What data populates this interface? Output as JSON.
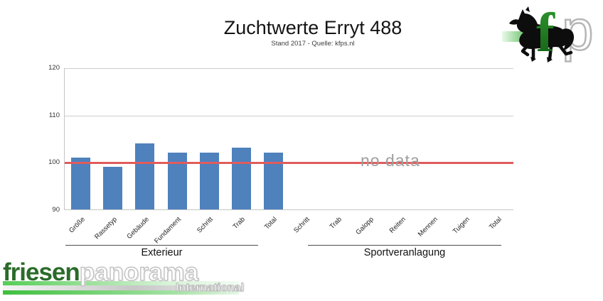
{
  "header": {
    "title": "Zuchtwerte Erryt 488",
    "subtitle": "Stand 2017 - Quelle: kfps.nl"
  },
  "chart_data": {
    "type": "bar",
    "title": "Zuchtwerte Erryt 488",
    "subtitle": "Stand 2017 - Quelle: kfps.nl",
    "ylim": [
      90,
      120
    ],
    "yticks": [
      90,
      100,
      110,
      120
    ],
    "grid": true,
    "legend": false,
    "bar_color": "#4f81bd",
    "reference_line": {
      "value": 100,
      "color": "#e05c5c"
    },
    "no_data_text": "no data",
    "groups": [
      {
        "label": "Exterieur",
        "categories": [
          "Größe",
          "Rassetyp",
          "Gebäude",
          "Fundament",
          "Schritt",
          "Trab",
          "Total"
        ],
        "values": [
          101,
          99,
          104,
          102,
          102,
          103,
          102
        ]
      },
      {
        "label": "Sportveranlagung",
        "categories": [
          "Schritt",
          "Trab",
          "Galopp",
          "Reiten",
          "Mennen",
          "Tuigen",
          "Total"
        ],
        "values": [
          null,
          null,
          null,
          null,
          null,
          null,
          null
        ],
        "no_data": true
      }
    ]
  },
  "branding": {
    "corner_logo": {
      "letter_f": "f",
      "letter_p": "p",
      "horse_icon": "friesian-horse",
      "green": "#2e8b2e"
    },
    "footer_logo": {
      "part1": "friesen",
      "part2": "panorama",
      "subtitle": "International",
      "green": "#2a6b2a"
    }
  }
}
